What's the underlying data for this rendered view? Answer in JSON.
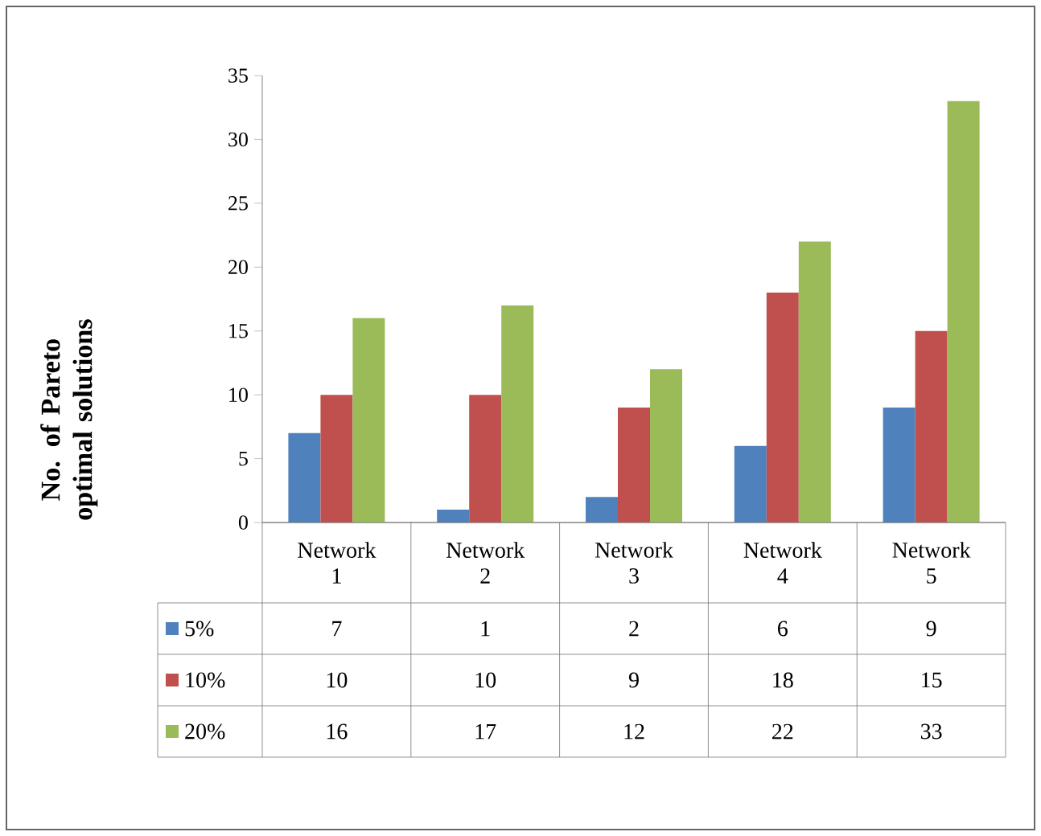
{
  "chart_data": {
    "type": "bar",
    "ylabel": "No. of Pareto optimal solutions",
    "categories": [
      "Network 1",
      "Network 2",
      "Network 3",
      "Network 4",
      "Network 5"
    ],
    "series": [
      {
        "name": "5%",
        "color": "#4f81bd",
        "values": [
          7,
          1,
          2,
          6,
          9
        ]
      },
      {
        "name": "10%",
        "color": "#c0504d",
        "values": [
          10,
          10,
          9,
          18,
          15
        ]
      },
      {
        "name": "20%",
        "color": "#9bbb59",
        "values": [
          16,
          17,
          12,
          22,
          33
        ]
      }
    ],
    "ylim": [
      0,
      35
    ],
    "yticks": [
      0,
      5,
      10,
      15,
      20,
      25,
      30,
      35
    ],
    "grid": false,
    "legend": "bottom",
    "data_labels": true
  }
}
